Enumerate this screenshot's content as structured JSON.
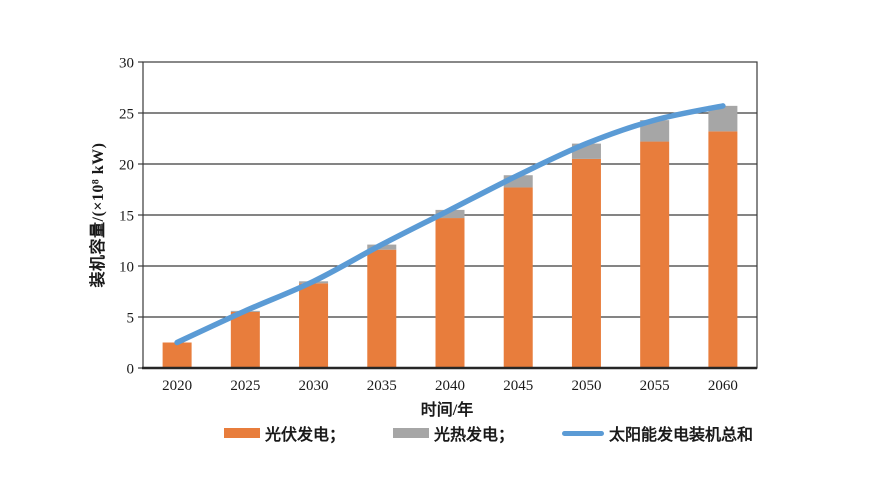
{
  "chart": {
    "y_axis_title": "装机容量/(×10⁸ kW)",
    "x_axis_title": "时间/年",
    "legend_items": [
      {
        "label": "光伏发电；",
        "swatch": "bar",
        "color": "#E87D3C"
      },
      {
        "label": "光热发电；",
        "swatch": "bar",
        "color": "#A6A6A6"
      },
      {
        "label": "太阳能发电装机总和",
        "swatch": "line",
        "color": "#5B9BD5"
      }
    ],
    "colors": {
      "pv_orange": "#E87D3C",
      "csp_gray": "#A6A6A6",
      "total_blue": "#5B9BD5",
      "grid": "#3a3a3a",
      "axis": "#262626",
      "text": "#1a1a1a"
    }
  },
  "chart_data": {
    "type": "bar",
    "stacked": true,
    "categories": [
      "2020",
      "2025",
      "2030",
      "2035",
      "2040",
      "2045",
      "2050",
      "2055",
      "2060"
    ],
    "series": [
      {
        "name": "光伏发电",
        "type": "bar",
        "color": "#E87D3C",
        "values": [
          2.5,
          5.5,
          8.3,
          11.6,
          14.7,
          17.7,
          20.5,
          22.2,
          23.2
        ]
      },
      {
        "name": "光热发电",
        "type": "bar",
        "color": "#A6A6A6",
        "values": [
          0,
          0.1,
          0.2,
          0.5,
          0.8,
          1.2,
          1.5,
          2.1,
          2.5
        ]
      },
      {
        "name": "太阳能发电装机总和",
        "type": "line",
        "color": "#5B9BD5",
        "values": [
          2.5,
          5.6,
          8.5,
          12.1,
          15.5,
          18.9,
          22.0,
          24.3,
          25.7
        ]
      }
    ],
    "title": "",
    "xlabel": "时间/年",
    "ylabel": "装机容量/(×10⁸ kW)",
    "ylim": [
      0,
      30
    ],
    "yticks": [
      0,
      5,
      10,
      15,
      20,
      25,
      30
    ],
    "grid": true,
    "legend_position": "bottom"
  }
}
